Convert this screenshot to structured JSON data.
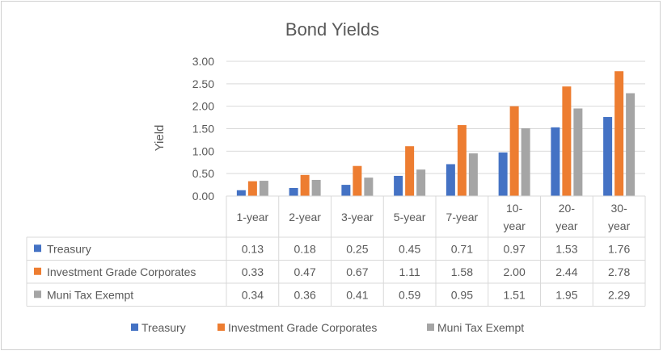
{
  "chart_data": {
    "type": "bar",
    "title": "Bond Yields",
    "xlabel": "",
    "ylabel": "Yield",
    "ylim": [
      0,
      3
    ],
    "y_ticks": [
      "0.00",
      "0.50",
      "1.00",
      "1.50",
      "2.00",
      "2.50",
      "3.00"
    ],
    "grid": true,
    "legend_position": "bottom",
    "data_table": true,
    "categories": [
      "1-year",
      "2-year",
      "3-year",
      "5-year",
      "7-year",
      "10-year",
      "20-year",
      "30-year"
    ],
    "category_labels": [
      [
        "1-year"
      ],
      [
        "2-year"
      ],
      [
        "3-year"
      ],
      [
        "5-year"
      ],
      [
        "7-year"
      ],
      [
        "10-",
        "year"
      ],
      [
        "20-",
        "year"
      ],
      [
        "30-",
        "year"
      ]
    ],
    "series": [
      {
        "name": "Treasury",
        "color": "#4472C4",
        "values": [
          0.13,
          0.18,
          0.25,
          0.45,
          0.71,
          0.97,
          1.53,
          1.76
        ],
        "labels": [
          "0.13",
          "0.18",
          "0.25",
          "0.45",
          "0.71",
          "0.97",
          "1.53",
          "1.76"
        ]
      },
      {
        "name": "Investment Grade Corporates",
        "color": "#ED7D31",
        "values": [
          0.33,
          0.47,
          0.67,
          1.11,
          1.58,
          2.0,
          2.44,
          2.78
        ],
        "labels": [
          "0.33",
          "0.47",
          "0.67",
          "1.11",
          "1.58",
          "2.00",
          "2.44",
          "2.78"
        ]
      },
      {
        "name": "Muni Tax Exempt",
        "color": "#A5A5A5",
        "values": [
          0.34,
          0.36,
          0.41,
          0.59,
          0.95,
          1.51,
          1.95,
          2.29
        ],
        "labels": [
          "0.34",
          "0.36",
          "0.41",
          "0.59",
          "0.95",
          "1.51",
          "1.95",
          "2.29"
        ]
      }
    ]
  }
}
